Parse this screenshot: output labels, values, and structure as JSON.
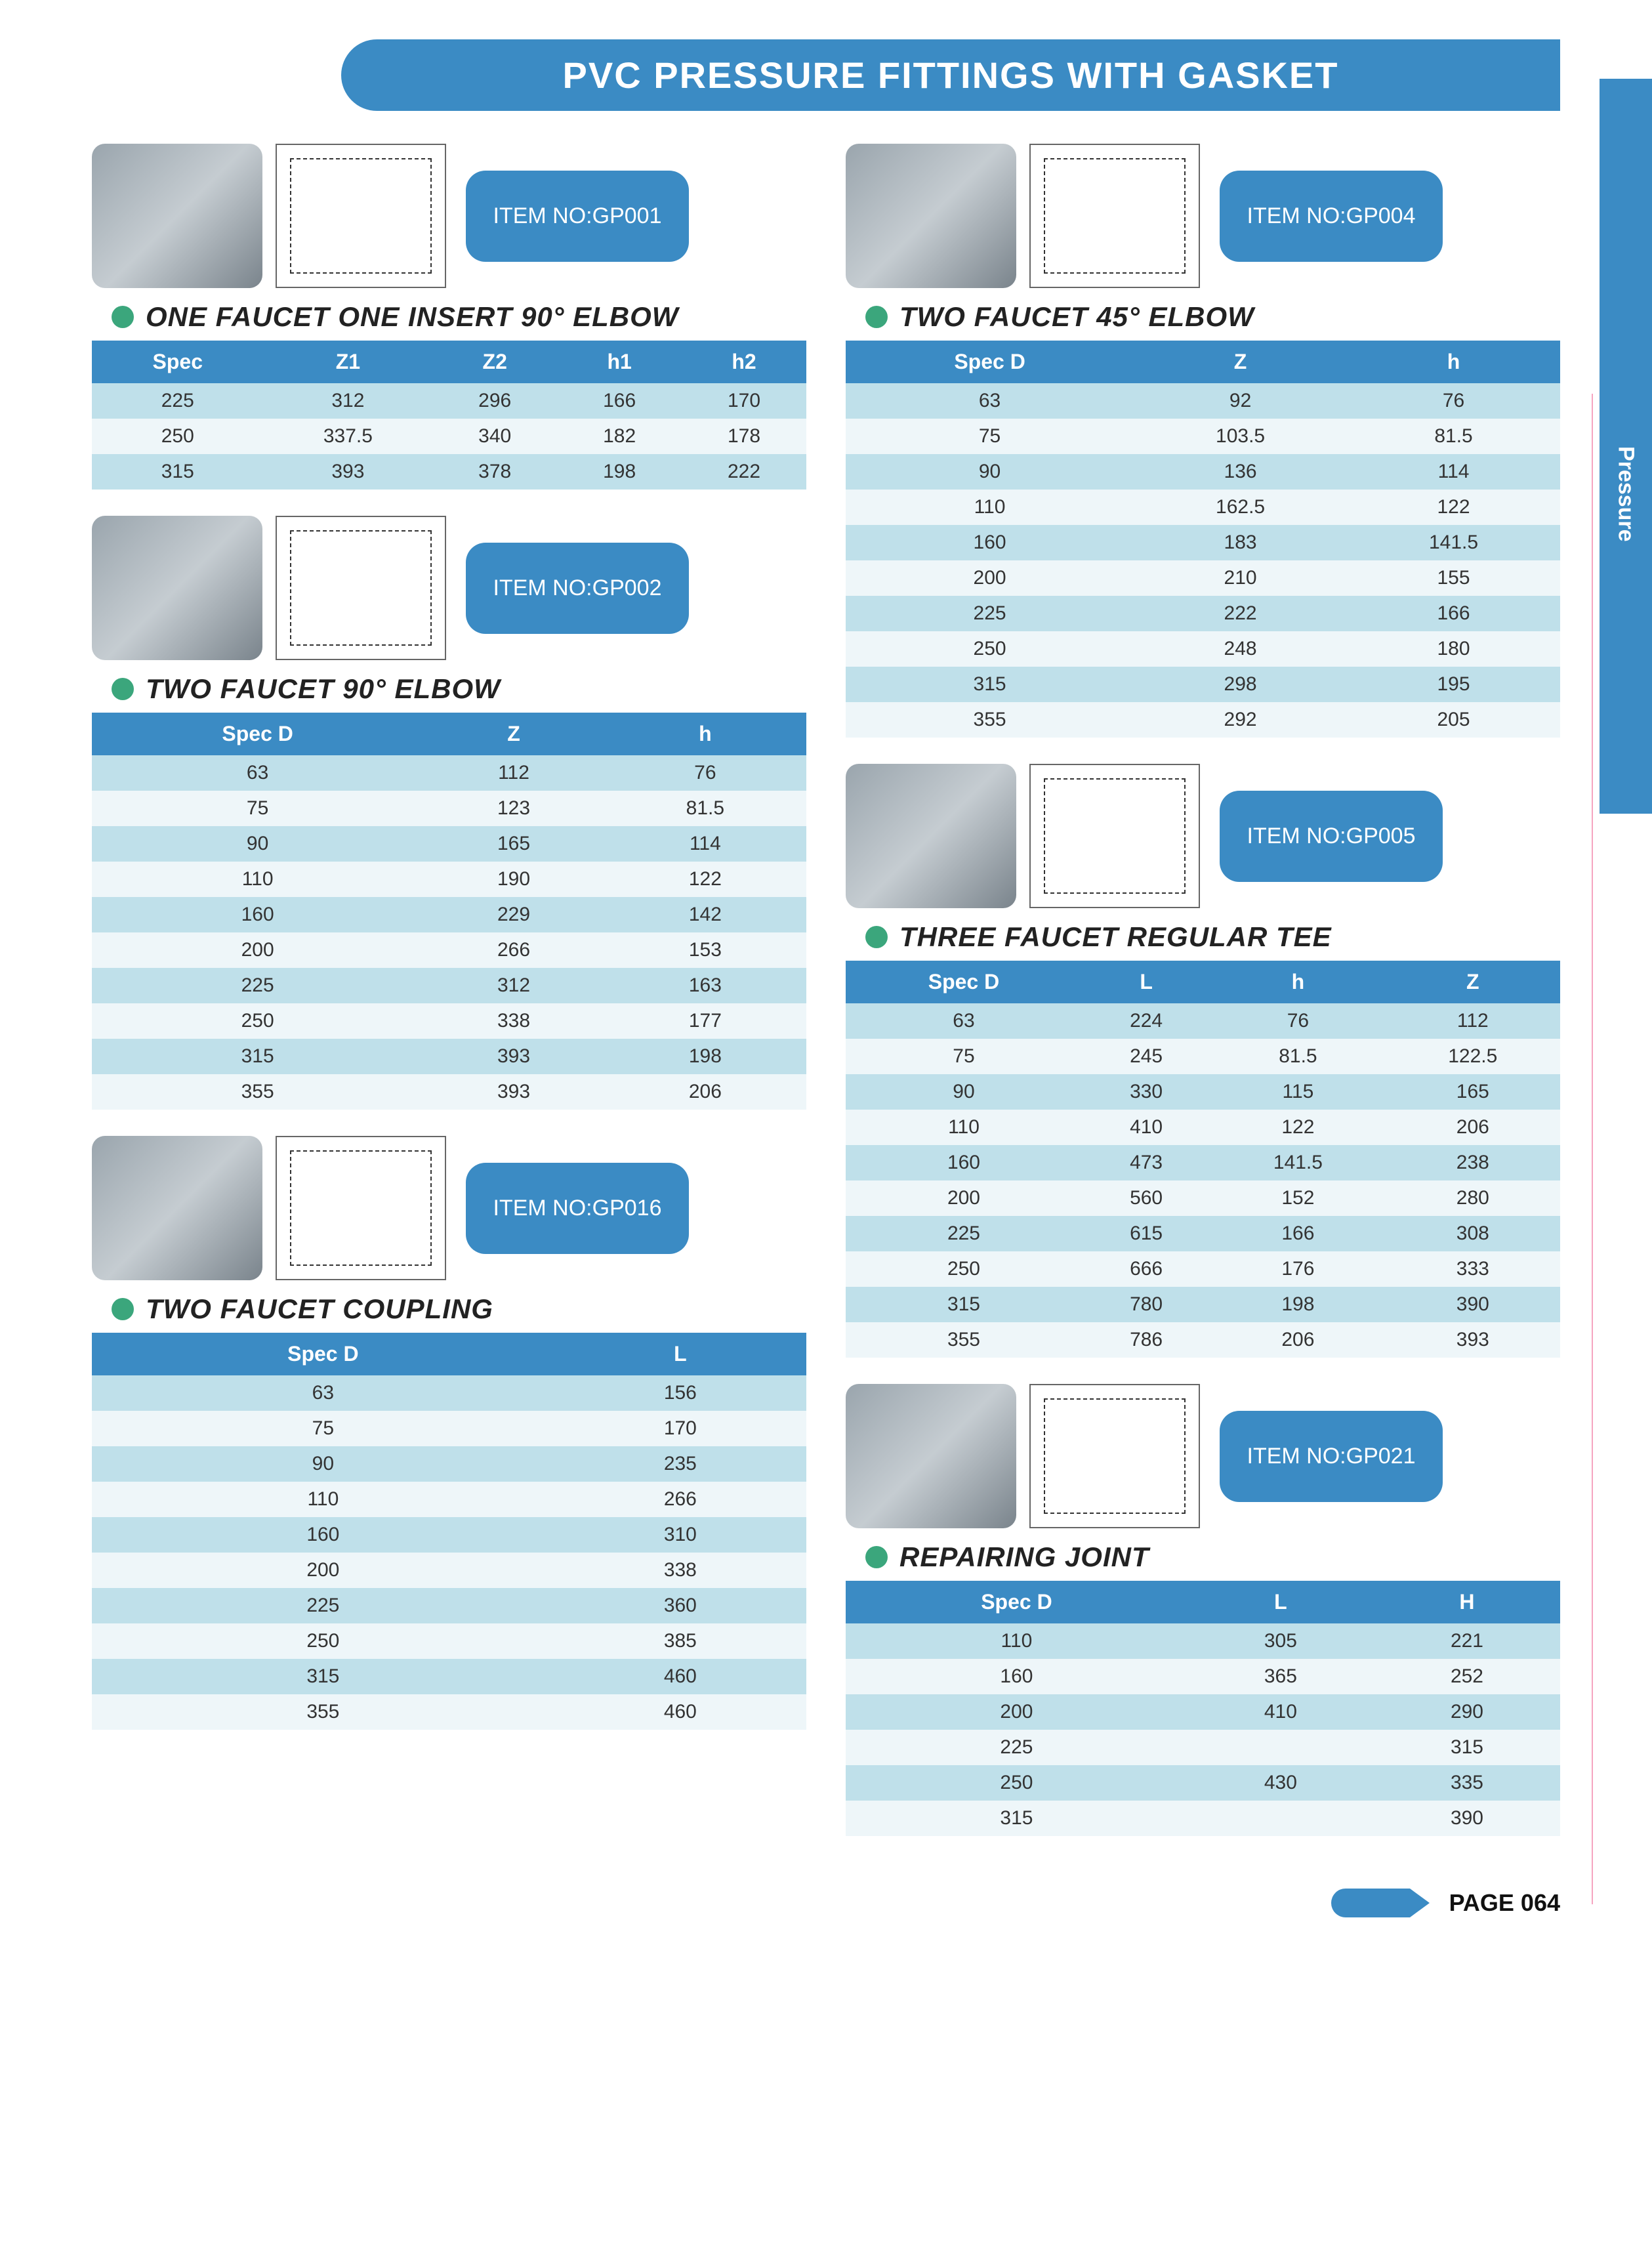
{
  "page": {
    "header_title": "PVC PRESSURE FITTINGS WITH GASKET",
    "side_tab": "Pressure",
    "page_label": "PAGE 064",
    "colors": {
      "primary": "#3b8bc4",
      "bullet": "#3ba67c",
      "row_odd": "#bfe0ea",
      "row_even": "#eef6f9",
      "text": "#222222"
    }
  },
  "left": {
    "p1": {
      "item_no": "ITEM NO:GP001",
      "title": "ONE FAUCET ONE INSERT 90° ELBOW",
      "columns": [
        "Spec",
        "Z1",
        "Z2",
        "h1",
        "h2"
      ],
      "rows": [
        [
          "225",
          "312",
          "296",
          "166",
          "170"
        ],
        [
          "250",
          "337.5",
          "340",
          "182",
          "178"
        ],
        [
          "315",
          "393",
          "378",
          "198",
          "222"
        ]
      ]
    },
    "p2": {
      "item_no": "ITEM NO:GP002",
      "title": "TWO FAUCET 90° ELBOW",
      "columns": [
        "Spec D",
        "Z",
        "h"
      ],
      "rows": [
        [
          "63",
          "112",
          "76"
        ],
        [
          "75",
          "123",
          "81.5"
        ],
        [
          "90",
          "165",
          "114"
        ],
        [
          "110",
          "190",
          "122"
        ],
        [
          "160",
          "229",
          "142"
        ],
        [
          "200",
          "266",
          "153"
        ],
        [
          "225",
          "312",
          "163"
        ],
        [
          "250",
          "338",
          "177"
        ],
        [
          "315",
          "393",
          "198"
        ],
        [
          "355",
          "393",
          "206"
        ]
      ]
    },
    "p3": {
      "item_no": "ITEM NO:GP016",
      "title": "TWO FAUCET COUPLING",
      "columns": [
        "Spec D",
        "L"
      ],
      "rows": [
        [
          "63",
          "156"
        ],
        [
          "75",
          "170"
        ],
        [
          "90",
          "235"
        ],
        [
          "110",
          "266"
        ],
        [
          "160",
          "310"
        ],
        [
          "200",
          "338"
        ],
        [
          "225",
          "360"
        ],
        [
          "250",
          "385"
        ],
        [
          "315",
          "460"
        ],
        [
          "355",
          "460"
        ]
      ]
    }
  },
  "right": {
    "p1": {
      "item_no": "ITEM NO:GP004",
      "title": "TWO FAUCET 45° ELBOW",
      "columns": [
        "Spec D",
        "Z",
        "h"
      ],
      "rows": [
        [
          "63",
          "92",
          "76"
        ],
        [
          "75",
          "103.5",
          "81.5"
        ],
        [
          "90",
          "136",
          "114"
        ],
        [
          "110",
          "162.5",
          "122"
        ],
        [
          "160",
          "183",
          "141.5"
        ],
        [
          "200",
          "210",
          "155"
        ],
        [
          "225",
          "222",
          "166"
        ],
        [
          "250",
          "248",
          "180"
        ],
        [
          "315",
          "298",
          "195"
        ],
        [
          "355",
          "292",
          "205"
        ]
      ]
    },
    "p2": {
      "item_no": "ITEM NO:GP005",
      "title": "THREE FAUCET REGULAR TEE",
      "columns": [
        "Spec D",
        "L",
        "h",
        "Z"
      ],
      "rows": [
        [
          "63",
          "224",
          "76",
          "112"
        ],
        [
          "75",
          "245",
          "81.5",
          "122.5"
        ],
        [
          "90",
          "330",
          "115",
          "165"
        ],
        [
          "110",
          "410",
          "122",
          "206"
        ],
        [
          "160",
          "473",
          "141.5",
          "238"
        ],
        [
          "200",
          "560",
          "152",
          "280"
        ],
        [
          "225",
          "615",
          "166",
          "308"
        ],
        [
          "250",
          "666",
          "176",
          "333"
        ],
        [
          "315",
          "780",
          "198",
          "390"
        ],
        [
          "355",
          "786",
          "206",
          "393"
        ]
      ]
    },
    "p3": {
      "item_no": "ITEM NO:GP021",
      "title": "REPAIRING JOINT",
      "columns": [
        "Spec D",
        "L",
        "H"
      ],
      "rows": [
        [
          "110",
          "305",
          "221"
        ],
        [
          "160",
          "365",
          "252"
        ],
        [
          "200",
          "410",
          "290"
        ],
        [
          "225",
          "",
          "315"
        ],
        [
          "250",
          "430",
          "335"
        ],
        [
          "315",
          "",
          "390"
        ]
      ]
    }
  }
}
